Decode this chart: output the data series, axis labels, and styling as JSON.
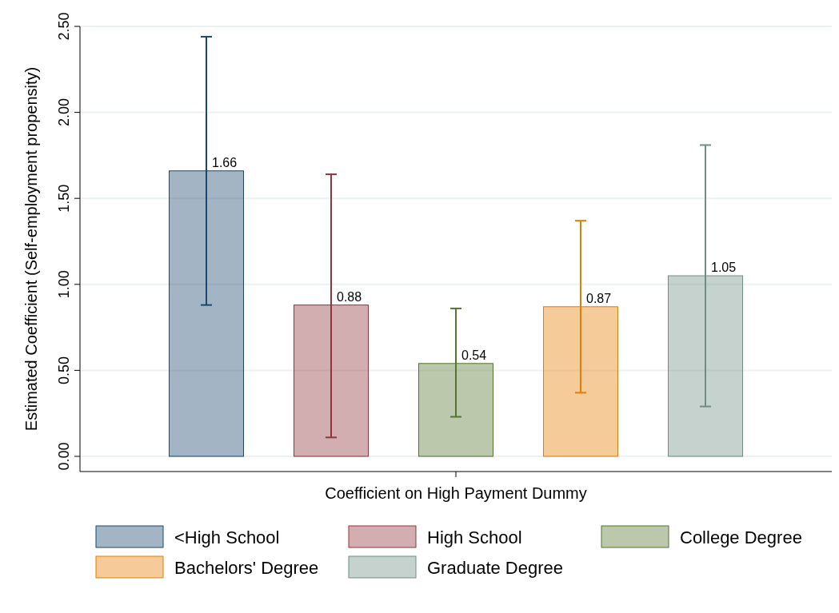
{
  "chart_data": {
    "type": "bar",
    "xlabel": "Coefficient on High Payment Dummy",
    "ylabel": "Estimated Coefficient (Self-employment propensity)",
    "categories": [
      null
    ],
    "series": [
      {
        "name": "<High School",
        "color": "#1a476f",
        "values": [
          1.66
        ],
        "errors": [
          [
            0.88,
            2.44
          ]
        ]
      },
      {
        "name": "High School",
        "color": "#90353b",
        "values": [
          0.88
        ],
        "errors": [
          [
            0.11,
            1.64
          ]
        ]
      },
      {
        "name": "College Degree",
        "color": "#55752f",
        "values": [
          0.54
        ],
        "errors": [
          [
            0.23,
            0.86
          ]
        ]
      },
      {
        "name": "Bachelors' Degree",
        "color": "#e37e00",
        "values": [
          0.87
        ],
        "errors": [
          [
            0.37,
            1.37
          ]
        ]
      },
      {
        "name": "Graduate Degree",
        "color": "#6e8e84",
        "values": [
          1.05
        ],
        "errors": [
          [
            0.29,
            1.81
          ]
        ]
      }
    ],
    "ylim": [
      0,
      2.5
    ],
    "yticks": [
      {
        "value": 0,
        "label": "0.00"
      },
      {
        "value": 0.5,
        "label": "0.50"
      },
      {
        "value": 1,
        "label": "1.00"
      },
      {
        "value": 1.5,
        "label": "1.50"
      },
      {
        "value": 2,
        "label": "2.00"
      },
      {
        "value": 2.5,
        "label": "2.50"
      }
    ],
    "grid": "y",
    "legend": "bottom",
    "data_labels": true
  }
}
